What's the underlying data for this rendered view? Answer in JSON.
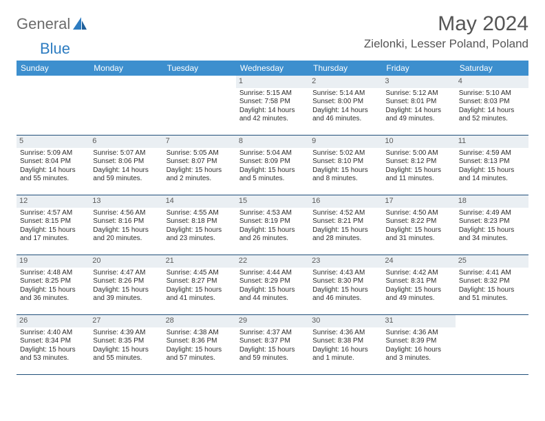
{
  "brand": {
    "part1": "General",
    "part2": "Blue"
  },
  "title": "May 2024",
  "location": "Zielonki, Lesser Poland, Poland",
  "colors": {
    "header_bg": "#3d8fce",
    "header_text": "#ffffff",
    "daynum_bg": "#eaeff3",
    "border": "#1f4e79",
    "brand_gray": "#6b6b6b",
    "brand_blue": "#2d7cc1"
  },
  "day_headers": [
    "Sunday",
    "Monday",
    "Tuesday",
    "Wednesday",
    "Thursday",
    "Friday",
    "Saturday"
  ],
  "weeks": [
    [
      {},
      {},
      {},
      {
        "n": "1",
        "sr": "5:15 AM",
        "ss": "7:58 PM",
        "dl": "14 hours and 42 minutes."
      },
      {
        "n": "2",
        "sr": "5:14 AM",
        "ss": "8:00 PM",
        "dl": "14 hours and 46 minutes."
      },
      {
        "n": "3",
        "sr": "5:12 AM",
        "ss": "8:01 PM",
        "dl": "14 hours and 49 minutes."
      },
      {
        "n": "4",
        "sr": "5:10 AM",
        "ss": "8:03 PM",
        "dl": "14 hours and 52 minutes."
      }
    ],
    [
      {
        "n": "5",
        "sr": "5:09 AM",
        "ss": "8:04 PM",
        "dl": "14 hours and 55 minutes."
      },
      {
        "n": "6",
        "sr": "5:07 AM",
        "ss": "8:06 PM",
        "dl": "14 hours and 59 minutes."
      },
      {
        "n": "7",
        "sr": "5:05 AM",
        "ss": "8:07 PM",
        "dl": "15 hours and 2 minutes."
      },
      {
        "n": "8",
        "sr": "5:04 AM",
        "ss": "8:09 PM",
        "dl": "15 hours and 5 minutes."
      },
      {
        "n": "9",
        "sr": "5:02 AM",
        "ss": "8:10 PM",
        "dl": "15 hours and 8 minutes."
      },
      {
        "n": "10",
        "sr": "5:00 AM",
        "ss": "8:12 PM",
        "dl": "15 hours and 11 minutes."
      },
      {
        "n": "11",
        "sr": "4:59 AM",
        "ss": "8:13 PM",
        "dl": "15 hours and 14 minutes."
      }
    ],
    [
      {
        "n": "12",
        "sr": "4:57 AM",
        "ss": "8:15 PM",
        "dl": "15 hours and 17 minutes."
      },
      {
        "n": "13",
        "sr": "4:56 AM",
        "ss": "8:16 PM",
        "dl": "15 hours and 20 minutes."
      },
      {
        "n": "14",
        "sr": "4:55 AM",
        "ss": "8:18 PM",
        "dl": "15 hours and 23 minutes."
      },
      {
        "n": "15",
        "sr": "4:53 AM",
        "ss": "8:19 PM",
        "dl": "15 hours and 26 minutes."
      },
      {
        "n": "16",
        "sr": "4:52 AM",
        "ss": "8:21 PM",
        "dl": "15 hours and 28 minutes."
      },
      {
        "n": "17",
        "sr": "4:50 AM",
        "ss": "8:22 PM",
        "dl": "15 hours and 31 minutes."
      },
      {
        "n": "18",
        "sr": "4:49 AM",
        "ss": "8:23 PM",
        "dl": "15 hours and 34 minutes."
      }
    ],
    [
      {
        "n": "19",
        "sr": "4:48 AM",
        "ss": "8:25 PM",
        "dl": "15 hours and 36 minutes."
      },
      {
        "n": "20",
        "sr": "4:47 AM",
        "ss": "8:26 PM",
        "dl": "15 hours and 39 minutes."
      },
      {
        "n": "21",
        "sr": "4:45 AM",
        "ss": "8:27 PM",
        "dl": "15 hours and 41 minutes."
      },
      {
        "n": "22",
        "sr": "4:44 AM",
        "ss": "8:29 PM",
        "dl": "15 hours and 44 minutes."
      },
      {
        "n": "23",
        "sr": "4:43 AM",
        "ss": "8:30 PM",
        "dl": "15 hours and 46 minutes."
      },
      {
        "n": "24",
        "sr": "4:42 AM",
        "ss": "8:31 PM",
        "dl": "15 hours and 49 minutes."
      },
      {
        "n": "25",
        "sr": "4:41 AM",
        "ss": "8:32 PM",
        "dl": "15 hours and 51 minutes."
      }
    ],
    [
      {
        "n": "26",
        "sr": "4:40 AM",
        "ss": "8:34 PM",
        "dl": "15 hours and 53 minutes."
      },
      {
        "n": "27",
        "sr": "4:39 AM",
        "ss": "8:35 PM",
        "dl": "15 hours and 55 minutes."
      },
      {
        "n": "28",
        "sr": "4:38 AM",
        "ss": "8:36 PM",
        "dl": "15 hours and 57 minutes."
      },
      {
        "n": "29",
        "sr": "4:37 AM",
        "ss": "8:37 PM",
        "dl": "15 hours and 59 minutes."
      },
      {
        "n": "30",
        "sr": "4:36 AM",
        "ss": "8:38 PM",
        "dl": "16 hours and 1 minute."
      },
      {
        "n": "31",
        "sr": "4:36 AM",
        "ss": "8:39 PM",
        "dl": "16 hours and 3 minutes."
      },
      {}
    ]
  ],
  "labels": {
    "sunrise": "Sunrise: ",
    "sunset": "Sunset: ",
    "daylight": "Daylight: "
  }
}
